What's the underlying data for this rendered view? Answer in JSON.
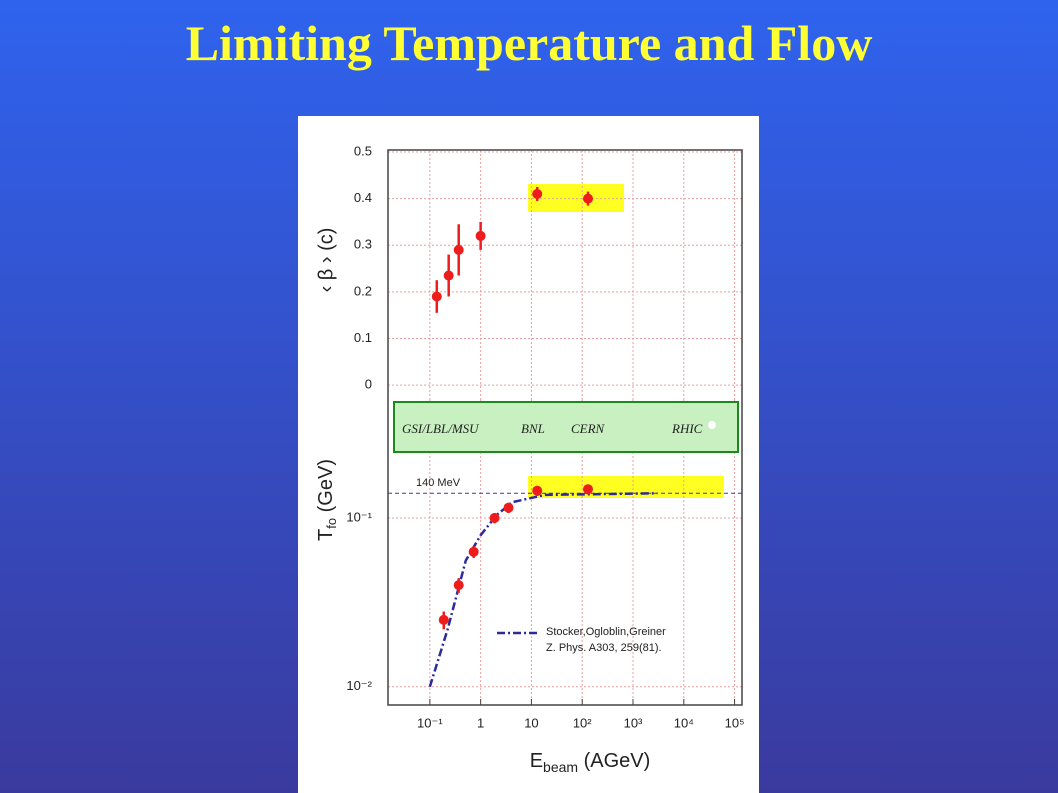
{
  "title": "Limiting Temperature and Flow",
  "labels": [
    "GSI/LBL/MSU",
    "BNL",
    "CERN",
    "RHIC"
  ],
  "chart_data": [
    {
      "type": "scatter",
      "ylabel": "‹ β › (c)",
      "x": [
        0.137,
        0.235,
        0.37,
        1.0,
        13,
        130
      ],
      "values": [
        0.19,
        0.235,
        0.29,
        0.32,
        0.41,
        0.4
      ],
      "errors": [
        0.035,
        0.045,
        0.055,
        0.03,
        0.015,
        0.015
      ],
      "color": "#ee1c1c",
      "xlim": [
        0.015,
        140000
      ],
      "xscale": "log",
      "ylim": [
        -0.032,
        0.5
      ],
      "yticks": [
        0,
        0.1,
        0.2,
        0.3,
        0.4,
        0.5
      ],
      "grid": true
    },
    {
      "type": "scatter",
      "xlabel": [
        "E",
        "beam",
        " (AGeV)"
      ],
      "ylabel": [
        "T",
        "fo",
        " (GeV)"
      ],
      "x": [
        0.188,
        0.37,
        0.73,
        1.88,
        3.54,
        13,
        130
      ],
      "values": [
        0.0249,
        0.04,
        0.063,
        0.1,
        0.115,
        0.145,
        0.148
      ],
      "errors": [
        0.003,
        0.004,
        0.005,
        0.007,
        0.008,
        0.01,
        0.01
      ],
      "color": "#ee1c1c",
      "model": {
        "name": "Stocker,Ogloblin,Greiner",
        "note": "Z. Phys. A303, 259(81).",
        "x": [
          0.1,
          0.225,
          0.51,
          1,
          2.06,
          4.2,
          18.8,
          3000
        ],
        "values": [
          0.01,
          0.022,
          0.056,
          0.079,
          0.104,
          0.124,
          0.137,
          0.14
        ],
        "color": "#2b2b9e"
      },
      "hline": {
        "value": 0.14,
        "label": "140 MeV",
        "color": "#3a3aa8"
      },
      "xlim": [
        0.015,
        140000
      ],
      "xscale": "log",
      "xticks": [
        {
          "value": 0.1,
          "label": "10⁻¹"
        },
        1,
        10,
        {
          "value": 100,
          "label": "10²"
        },
        {
          "value": 1000,
          "label": "10³"
        },
        {
          "value": 10000,
          "label": "10⁴"
        },
        {
          "value": 100000,
          "label": "10⁵"
        }
      ],
      "ylim": [
        0.0078,
        0.236
      ],
      "yscale": "log",
      "yticks": [
        {
          "value": 0.01,
          "label": "10⁻²"
        },
        {
          "value": 0.1,
          "label": "10⁻¹"
        }
      ],
      "grid": true
    }
  ]
}
